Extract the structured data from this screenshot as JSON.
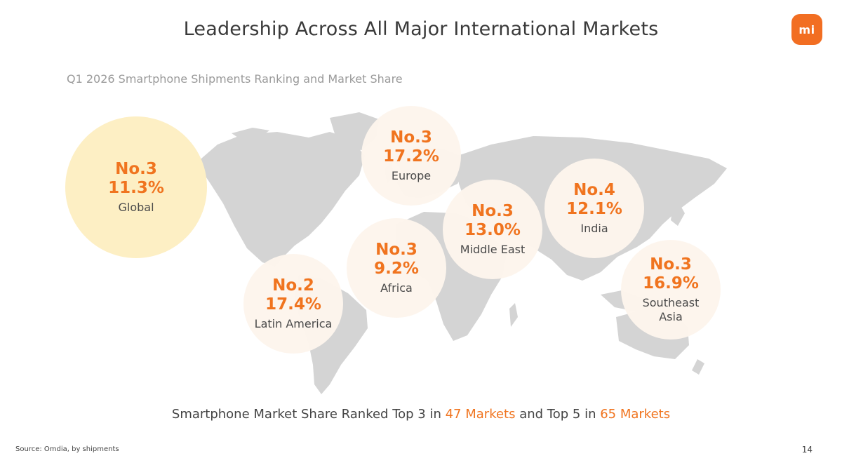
{
  "title": "Leadership Across All Major International Markets",
  "logo_text": "mi",
  "subtitle": "Q1 2026 Smartphone Shipments Ranking and Market Share",
  "markets": [
    {
      "rank": "No.3",
      "share": "11.3%",
      "region": "Global"
    },
    {
      "rank": "No.3",
      "share": "17.2%",
      "region": "Europe"
    },
    {
      "rank": "No.4",
      "share": "12.1%",
      "region": "India"
    },
    {
      "rank": "No.3",
      "share": "13.0%",
      "region": "Middle East"
    },
    {
      "rank": "No.3",
      "share": "9.2%",
      "region": "Africa"
    },
    {
      "rank": "No.2",
      "share": "17.4%",
      "region": "Latin America"
    },
    {
      "rank": "No.3",
      "share": "16.9%",
      "region": "Southeast\nAsia"
    }
  ],
  "summary": {
    "part1": "Smartphone Market Share Ranked Top 3 in ",
    "top3_markets": "47 Markets",
    "part2": " and Top 5 in ",
    "top5_markets": "65 Markets"
  },
  "source": "Source: Omdia, by shipments",
  "page_number": "14",
  "colors": {
    "accent": "#f0741f",
    "logo": "#f26e22",
    "map": "#d4d4d4",
    "global_bubble": "#fdefc4",
    "bubble": "#fdf5ec"
  }
}
